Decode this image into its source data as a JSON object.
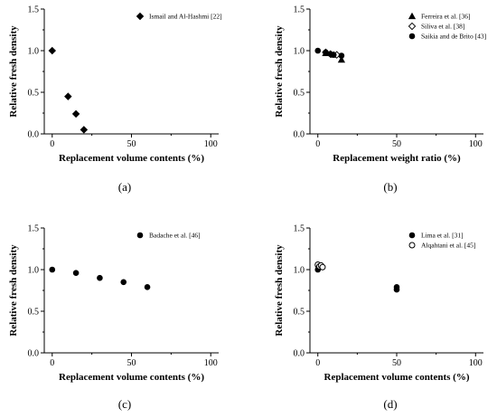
{
  "chart_data": [
    {
      "type": "scatter",
      "caption": "(a)",
      "xlabel": "Replacement volume contents (%)",
      "ylabel": "Relative fresh density",
      "xlim": [
        -5,
        105
      ],
      "ylim": [
        0,
        1.5
      ],
      "xticks": [
        "0",
        "50",
        "100"
      ],
      "yticks": [
        "0.0",
        "0.5",
        "1.0",
        "1.5"
      ],
      "legend_position": "top-right",
      "series": [
        {
          "name": "Ismail and Al-Hashmi [22]",
          "marker": "diamond",
          "points": [
            [
              0,
              1.0
            ],
            [
              10,
              0.45
            ],
            [
              15,
              0.24
            ],
            [
              20,
              0.05
            ]
          ]
        }
      ]
    },
    {
      "type": "scatter",
      "caption": "(b)",
      "xlabel": "Replacement weight ratio (%)",
      "ylabel": "Relative fresh density",
      "xlim": [
        -5,
        105
      ],
      "ylim": [
        0,
        1.5
      ],
      "xticks": [
        "0",
        "50",
        "100"
      ],
      "yticks": [
        "0.0",
        "0.5",
        "1.0",
        "1.5"
      ],
      "legend_position": "top-right",
      "series": [
        {
          "name": "Ferreira et al. [36]",
          "marker": "triangle",
          "points": [
            [
              5,
              0.97
            ],
            [
              10,
              0.95
            ],
            [
              15,
              0.89
            ]
          ]
        },
        {
          "name": "Siliva et al. [38]",
          "marker": "open-diamond",
          "points": [
            [
              5,
              0.98
            ],
            [
              8,
              0.96
            ],
            [
              12,
              0.95
            ]
          ]
        },
        {
          "name": "Saikia and de Brito [43]",
          "marker": "circle",
          "points": [
            [
              0,
              1.0
            ],
            [
              5,
              0.98
            ],
            [
              8,
              0.96
            ],
            [
              10,
              0.95
            ],
            [
              15,
              0.94
            ]
          ]
        }
      ]
    },
    {
      "type": "scatter",
      "caption": "(c)",
      "xlabel": "Replacement volume contents (%)",
      "ylabel": "Relative fresh density",
      "xlim": [
        -5,
        105
      ],
      "ylim": [
        0,
        1.5
      ],
      "xticks": [
        "0",
        "50",
        "100"
      ],
      "yticks": [
        "0.0",
        "0.5",
        "1.0",
        "1.5"
      ],
      "legend_position": "top-right",
      "series": [
        {
          "name": "Badache et al. [46]",
          "marker": "circle",
          "points": [
            [
              0,
              1.0
            ],
            [
              15,
              0.96
            ],
            [
              30,
              0.9
            ],
            [
              45,
              0.85
            ],
            [
              60,
              0.79
            ]
          ]
        }
      ]
    },
    {
      "type": "scatter",
      "caption": "(d)",
      "xlabel": "Replacement volume contents (%)",
      "ylabel": "Relative fresh density",
      "xlim": [
        -5,
        105
      ],
      "ylim": [
        0,
        1.5
      ],
      "xticks": [
        "0",
        "50",
        "100"
      ],
      "yticks": [
        "0.0",
        "0.5",
        "1.0",
        "1.5"
      ],
      "legend_position": "top-right",
      "series": [
        {
          "name": "Lima et al. [31]",
          "marker": "circle",
          "points": [
            [
              0,
              1.0
            ],
            [
              0,
              1.05
            ],
            [
              50,
              0.79
            ],
            [
              50,
              0.76
            ]
          ]
        },
        {
          "name": "Alqahtani et al. [45]",
          "marker": "open-circle",
          "points": [
            [
              0,
              1.06
            ],
            [
              1,
              1.04
            ],
            [
              2,
              1.05
            ],
            [
              3,
              1.03
            ]
          ]
        }
      ]
    }
  ]
}
